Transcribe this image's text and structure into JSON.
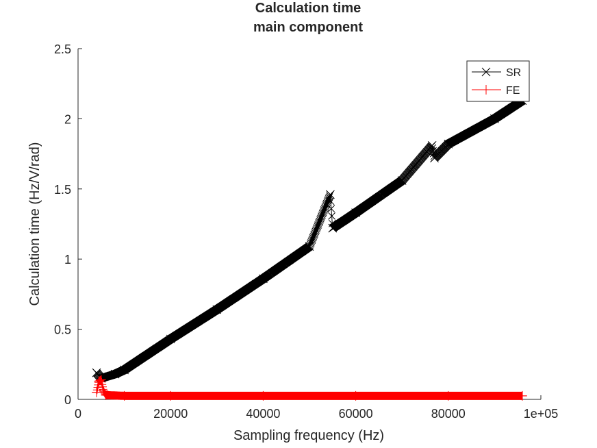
{
  "chart_data": {
    "type": "line",
    "title": [
      "Calculation time",
      "main component"
    ],
    "xlabel": "Sampling frequency (Hz)",
    "ylabel": "Calculation time (Hz/V/rad)",
    "xlim": [
      0,
      100000
    ],
    "ylim": [
      0,
      2.5
    ],
    "x_ticks": [
      0,
      20000,
      40000,
      60000,
      80000,
      100000
    ],
    "x_tick_labels": [
      "0",
      "20000",
      "40000",
      "60000",
      "80000",
      "1e+05"
    ],
    "y_ticks": [
      0,
      0.5,
      1,
      1.5,
      2,
      2.5
    ],
    "y_tick_labels": [
      "0",
      "0.5",
      "1",
      "1.5",
      "2",
      "2.5"
    ],
    "grid": false,
    "legend_position": "top-right",
    "x_range": [
      4000,
      96000
    ],
    "series": [
      {
        "name": "SR",
        "color": "#000000",
        "marker": "x",
        "x": [
          4000,
          5000,
          8000,
          10000,
          20000,
          30000,
          40000,
          50000,
          54500,
          55000,
          60000,
          70000,
          76500,
          77000,
          80000,
          90000,
          96000
        ],
        "y": [
          0.19,
          0.15,
          0.18,
          0.21,
          0.43,
          0.64,
          0.86,
          1.09,
          1.46,
          1.22,
          1.33,
          1.56,
          1.81,
          1.72,
          1.82,
          2.0,
          2.13
        ]
      },
      {
        "name": "FE",
        "color": "#ff0000",
        "marker": "+",
        "x": [
          4000,
          4500,
          5000,
          5500,
          6000,
          10000,
          20000,
          40000,
          60000,
          80000,
          96000
        ],
        "y": [
          0.05,
          0.13,
          0.14,
          0.06,
          0.03,
          0.025,
          0.025,
          0.025,
          0.025,
          0.025,
          0.025
        ]
      }
    ]
  }
}
